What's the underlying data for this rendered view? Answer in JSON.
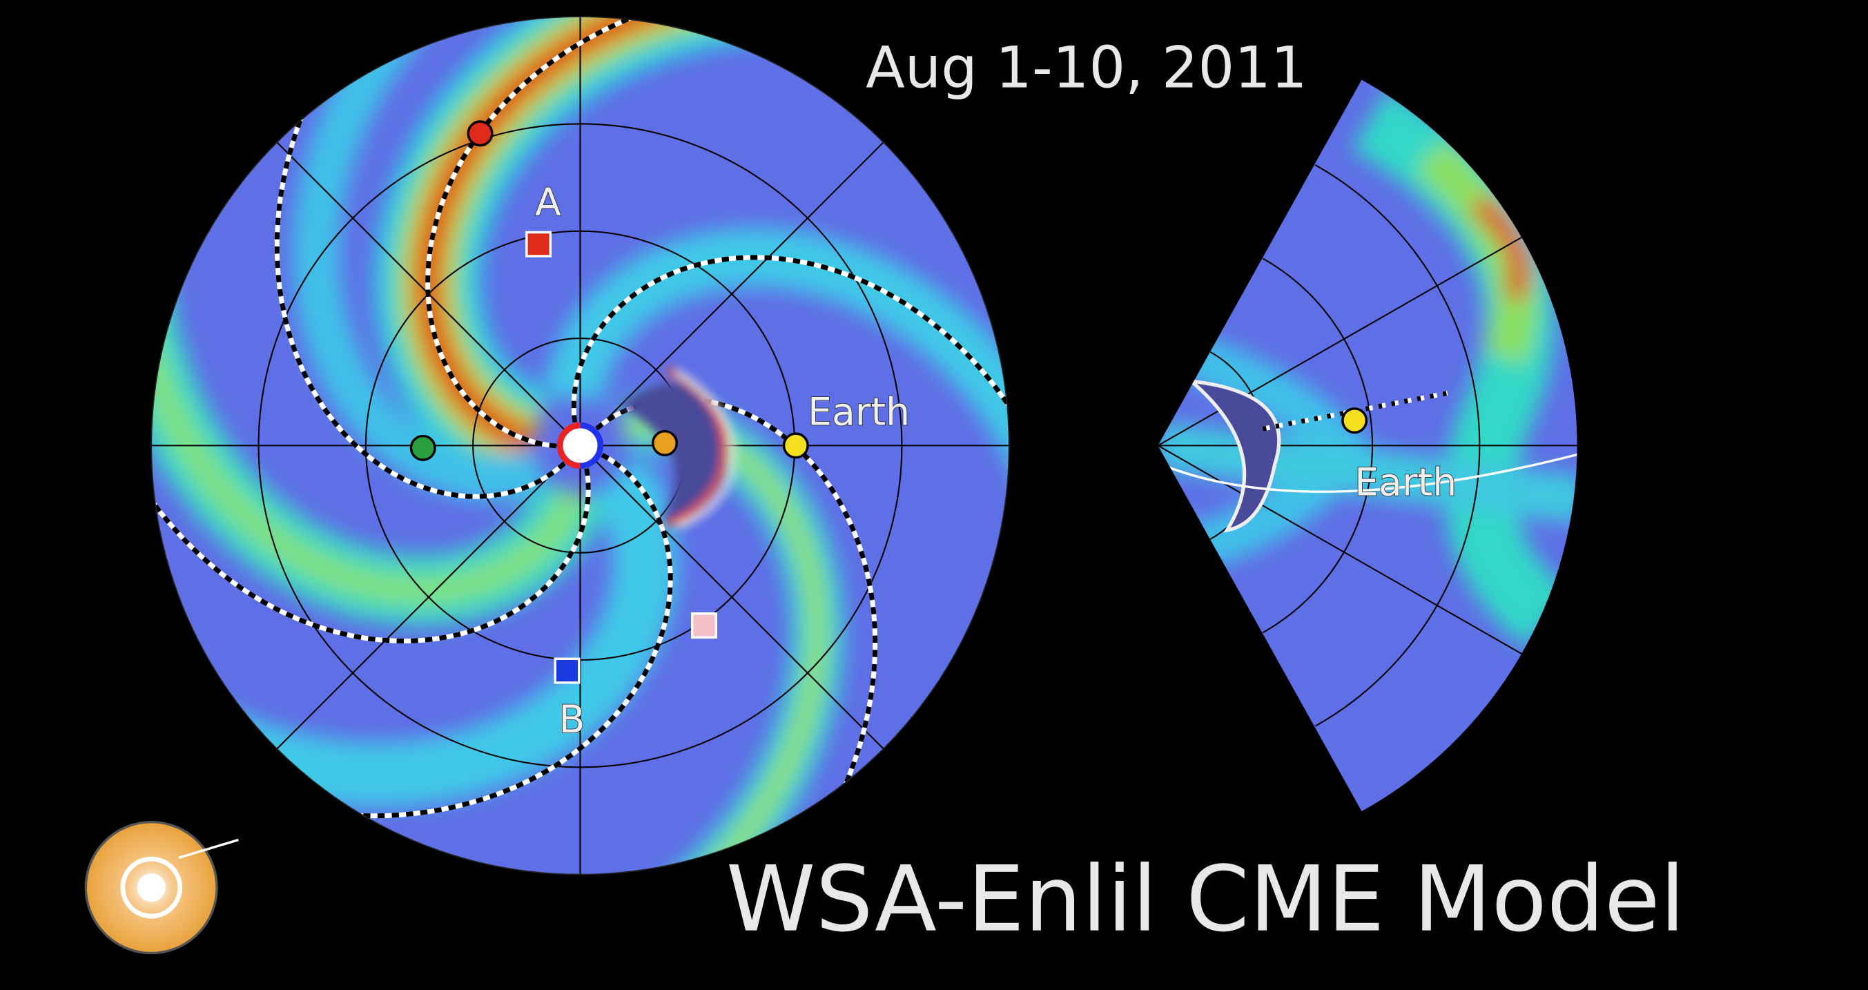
{
  "title": "Aug 1-10, 2011",
  "caption": "WSA-Enlil CME Model",
  "ecliptic_view": {
    "labels": {
      "a": "A",
      "b": "B",
      "earth": "Earth"
    }
  },
  "meridional_view": {
    "labels": {
      "earth": "Earth"
    }
  }
}
